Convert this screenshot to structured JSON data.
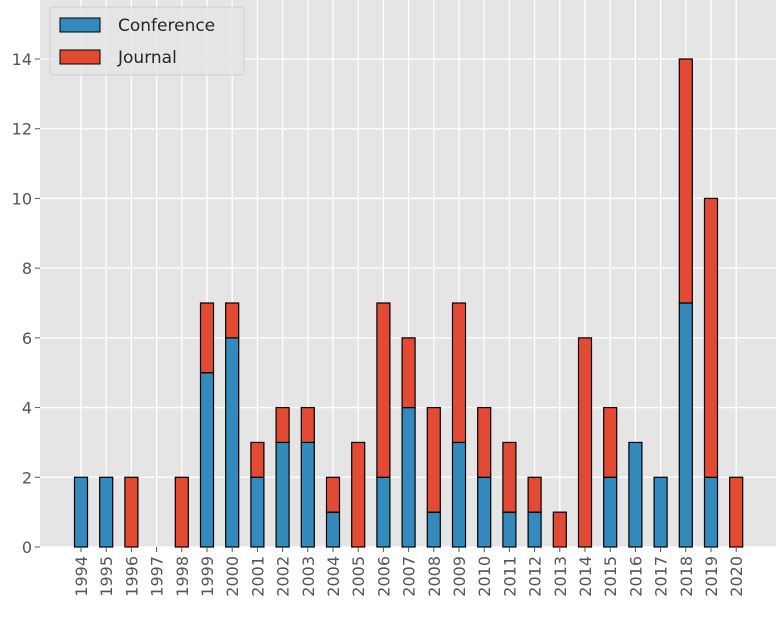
{
  "chart_data": {
    "type": "bar",
    "stacked": true,
    "categories": [
      "1994",
      "1995",
      "1996",
      "1997",
      "1998",
      "1999",
      "2000",
      "2001",
      "2002",
      "2003",
      "2004",
      "2005",
      "2006",
      "2007",
      "2008",
      "2009",
      "2010",
      "2011",
      "2012",
      "2013",
      "2014",
      "2015",
      "2016",
      "2017",
      "2018",
      "2019",
      "2020"
    ],
    "series": [
      {
        "name": "Conference",
        "color": "#348ABD",
        "values": [
          2,
          2,
          0,
          0,
          0,
          5,
          6,
          2,
          3,
          3,
          1,
          0,
          2,
          4,
          1,
          3,
          2,
          1,
          1,
          0,
          0,
          2,
          3,
          2,
          7,
          2,
          0
        ]
      },
      {
        "name": "Journal",
        "color": "#E24A33",
        "values": [
          0,
          0,
          2,
          0,
          2,
          2,
          1,
          1,
          1,
          1,
          1,
          3,
          5,
          2,
          3,
          4,
          2,
          2,
          1,
          1,
          6,
          2,
          0,
          0,
          7,
          8,
          2
        ]
      }
    ],
    "ylim": [
      0,
      15
    ],
    "yticks": [
      0,
      2,
      4,
      6,
      8,
      10,
      12,
      14
    ],
    "grid": true,
    "background": "#E5E5E5",
    "legend_position": "top-left",
    "xtick_rotation": 90
  }
}
